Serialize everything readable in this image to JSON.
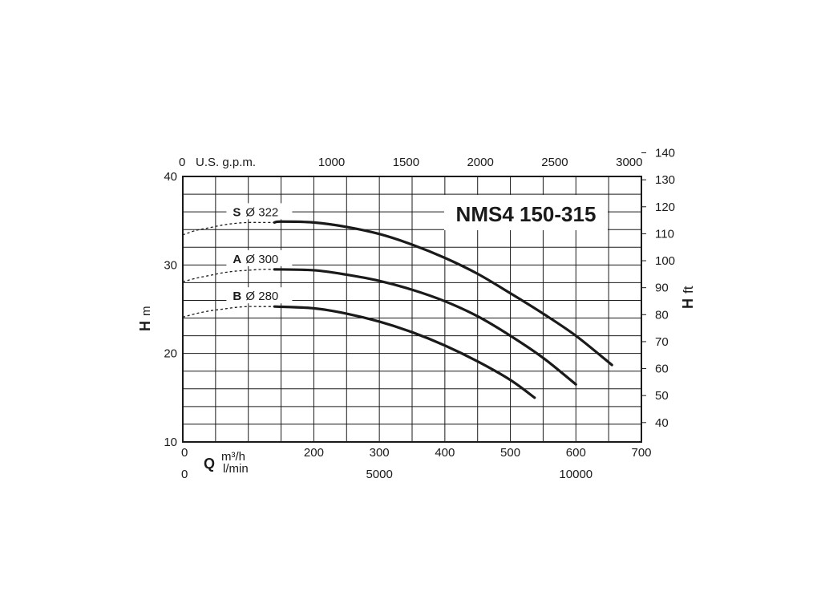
{
  "chart_data": {
    "type": "line",
    "title": "NMS4 150-315",
    "x_axis_bottom": {
      "quantity": "Q",
      "unit_primary": "m³/h",
      "unit_secondary": "l/min",
      "range": [
        0,
        700
      ],
      "ticks": [
        0,
        100,
        200,
        300,
        400,
        500,
        600,
        700
      ],
      "tick_labels": [
        "0",
        "",
        "200",
        "300",
        "400",
        "500",
        "600",
        "700"
      ],
      "secondary_ticks": [
        {
          "label": "0",
          "m3h": 0
        },
        {
          "label": "5000",
          "m3h": 300
        },
        {
          "label": "10000",
          "m3h": 600
        }
      ]
    },
    "x_axis_top": {
      "unit": "U.S. g.p.m.",
      "ticks": [
        {
          "label": "0",
          "m3h": 0
        },
        {
          "label": "1000",
          "m3h": 227.1
        },
        {
          "label": "1500",
          "m3h": 340.7
        },
        {
          "label": "2000",
          "m3h": 454.2
        },
        {
          "label": "2500",
          "m3h": 567.8
        },
        {
          "label": "3000",
          "m3h": 681.4
        }
      ]
    },
    "y_axis_left": {
      "quantity": "H",
      "unit": "m",
      "range": [
        10,
        40
      ],
      "ticks": [
        10,
        20,
        30,
        40
      ]
    },
    "y_axis_right": {
      "quantity": "H",
      "unit": "ft",
      "ticks": [
        40,
        50,
        60,
        70,
        80,
        90,
        100,
        110,
        120,
        130,
        140
      ]
    },
    "grid": true,
    "series": [
      {
        "letter": "S",
        "diameter": "Ø 322",
        "x": [
          140,
          150,
          200,
          250,
          300,
          350,
          400,
          450,
          500,
          550,
          600,
          655
        ],
        "y": [
          34.8,
          34.9,
          34.8,
          34.3,
          33.5,
          32.3,
          30.8,
          29.0,
          26.8,
          24.5,
          22.0,
          18.7
        ],
        "dashed_x": [
          0,
          20,
          40,
          60,
          80,
          100,
          120,
          140
        ],
        "dashed_y": [
          33.4,
          33.9,
          34.2,
          34.5,
          34.7,
          34.8,
          34.8,
          34.8
        ]
      },
      {
        "letter": "A",
        "diameter": "Ø 300",
        "x": [
          140,
          200,
          250,
          300,
          350,
          400,
          450,
          500,
          550,
          600
        ],
        "y": [
          29.5,
          29.4,
          28.9,
          28.2,
          27.2,
          25.9,
          24.2,
          22.0,
          19.5,
          16.5
        ],
        "dashed_x": [
          0,
          20,
          40,
          60,
          80,
          100,
          120,
          140
        ],
        "dashed_y": [
          28.1,
          28.5,
          28.8,
          29.1,
          29.3,
          29.4,
          29.5,
          29.5
        ]
      },
      {
        "letter": "B",
        "diameter": "Ø 280",
        "x": [
          140,
          200,
          250,
          300,
          350,
          400,
          450,
          500,
          537
        ],
        "y": [
          25.3,
          25.1,
          24.5,
          23.6,
          22.4,
          20.9,
          19.1,
          17.0,
          15.0
        ],
        "dashed_x": [
          0,
          20,
          40,
          60,
          80,
          100,
          120,
          140
        ],
        "dashed_y": [
          24.1,
          24.5,
          24.8,
          25.0,
          25.2,
          25.3,
          25.3,
          25.3
        ]
      }
    ]
  }
}
